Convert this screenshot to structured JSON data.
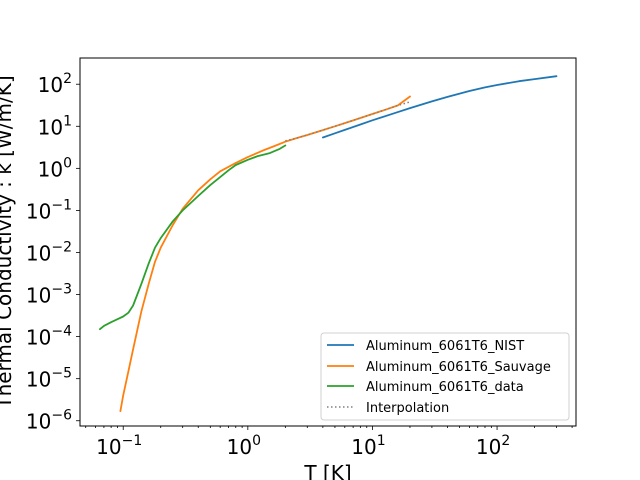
{
  "chart_data": {
    "type": "line",
    "xscale": "log",
    "yscale": "log",
    "xlim": [
      0.045,
      430
    ],
    "ylim": [
      7.5e-07,
      420
    ],
    "xlabel": "T [K]",
    "ylabel": "Thermal Conductivity : k [W/m/K]",
    "x_ticks": [
      {
        "value": 0.1,
        "base": "10",
        "exp": "−1"
      },
      {
        "value": 1,
        "base": "10",
        "exp": "0"
      },
      {
        "value": 10,
        "base": "10",
        "exp": "1"
      },
      {
        "value": 100,
        "base": "10",
        "exp": "2"
      }
    ],
    "y_ticks": [
      {
        "value": 1e-06,
        "base": "10",
        "exp": "−6"
      },
      {
        "value": 1e-05,
        "base": "10",
        "exp": "−5"
      },
      {
        "value": 0.0001,
        "base": "10",
        "exp": "−4"
      },
      {
        "value": 0.001,
        "base": "10",
        "exp": "−3"
      },
      {
        "value": 0.01,
        "base": "10",
        "exp": "−2"
      },
      {
        "value": 0.1,
        "base": "10",
        "exp": "−1"
      },
      {
        "value": 1,
        "base": "10",
        "exp": "0"
      },
      {
        "value": 10,
        "base": "10",
        "exp": "1"
      },
      {
        "value": 100,
        "base": "10",
        "exp": "2"
      }
    ],
    "legend_position": "lower-right",
    "series": [
      {
        "name": "Aluminum_6061T6_NIST",
        "color": "#1f77b4",
        "style": "solid",
        "x": [
          4,
          5,
          6,
          8,
          10,
          15,
          20,
          30,
          40,
          60,
          80,
          100,
          150,
          200,
          300
        ],
        "y": [
          5.4,
          6.8,
          8.2,
          11,
          13.9,
          20.5,
          27,
          39,
          50,
          69,
          84,
          96,
          118,
          132,
          155
        ]
      },
      {
        "name": "Aluminum_6061T6_Sauvage",
        "color": "#ff7f0e",
        "style": "solid",
        "x": [
          0.095,
          0.1,
          0.11,
          0.12,
          0.14,
          0.16,
          0.18,
          0.2,
          0.25,
          0.3,
          0.4,
          0.5,
          0.6,
          0.8,
          1.0,
          1.3,
          1.6,
          2.0,
          2.5,
          3,
          4,
          5,
          6,
          8,
          10,
          13,
          16,
          20
        ],
        "y": [
          1.7e-06,
          4e-06,
          1.5e-05,
          5e-05,
          0.0004,
          0.0018,
          0.006,
          0.013,
          0.045,
          0.11,
          0.3,
          0.55,
          0.85,
          1.35,
          1.85,
          2.6,
          3.3,
          4.3,
          5.3,
          6.2,
          8.1,
          10,
          11.9,
          15.7,
          19.6,
          25.4,
          31.3,
          51
        ]
      },
      {
        "name": "Aluminum_6061T6_data",
        "color": "#2ca02c",
        "style": "solid",
        "x": [
          0.065,
          0.07,
          0.08,
          0.09,
          0.1,
          0.11,
          0.12,
          0.14,
          0.16,
          0.18,
          0.2,
          0.25,
          0.3,
          0.4,
          0.5,
          0.6,
          0.7,
          0.8,
          1.0,
          1.2,
          1.5,
          1.8,
          2.0
        ],
        "y": [
          0.00015,
          0.00018,
          0.00022,
          0.00026,
          0.0003,
          0.00037,
          0.00055,
          0.0018,
          0.0055,
          0.013,
          0.022,
          0.055,
          0.1,
          0.22,
          0.4,
          0.62,
          0.9,
          1.2,
          1.6,
          1.95,
          2.3,
          2.9,
          3.5
        ]
      },
      {
        "name": "Interpolation",
        "color": "#808080",
        "style": "dotted",
        "x": [
          2.0,
          2.5,
          3,
          4,
          5,
          6,
          8,
          10,
          13,
          16,
          20
        ],
        "y": [
          4.5,
          5.3,
          6.2,
          8.1,
          10,
          11.9,
          15.7,
          19.6,
          25.4,
          31.3,
          38
        ]
      }
    ]
  }
}
